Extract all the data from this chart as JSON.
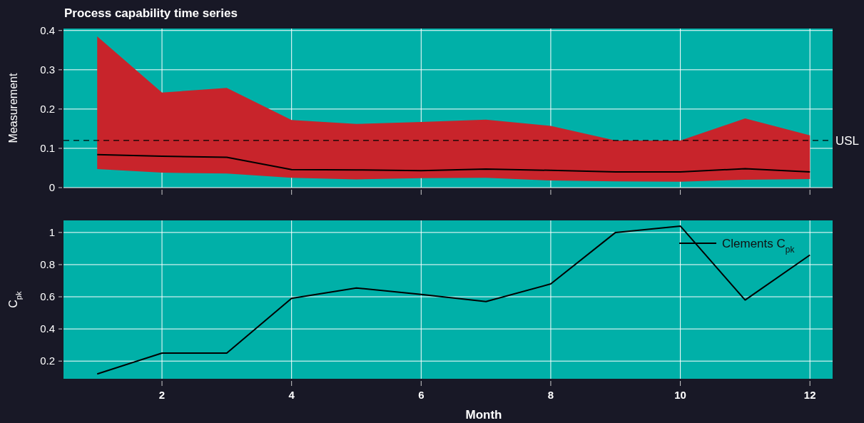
{
  "chart_data": [
    {
      "type": "line",
      "title": "Process capability time series",
      "ylabel": "Measurement",
      "x": [
        1,
        2,
        3,
        4,
        5,
        6,
        7,
        8,
        9,
        10,
        11,
        12
      ],
      "series": [
        {
          "color": "#000000",
          "colors": [
            "#c8242b",
            "#c8242b",
            "#c8242b",
            "#c8242b",
            "#c8242b",
            "#c8242b",
            "#c8242b",
            "#c8242b",
            "#c8242b",
            "#c8242b",
            "#c8242b",
            "#c8242b"
          ],
          "values": [
            0.084,
            0.08,
            0.077,
            0.046,
            0.045,
            0.043,
            0.047,
            0.044,
            0.04,
            0.04,
            0.048,
            0.04
          ],
          "lower": [
            0.047,
            0.038,
            0.036,
            0.025,
            0.021,
            0.024,
            0.025,
            0.018,
            0.016,
            0.015,
            0.02,
            0.022
          ],
          "upper": [
            0.385,
            0.242,
            0.254,
            0.172,
            0.162,
            0.167,
            0.173,
            0.157,
            0.12,
            0.12,
            0.176,
            0.133
          ]
        }
      ],
      "xlim": [
        0.48,
        12.35
      ],
      "xticks": [
        2,
        4,
        6,
        8,
        10,
        12
      ],
      "ylim": [
        0,
        0.405
      ],
      "yticks": [
        0,
        0.1,
        0.2,
        0.3,
        0.4
      ],
      "ref_lines": [
        {
          "axis": "y",
          "value": 0.12,
          "label": "USL",
          "color": "#000000",
          "line_style": "dashed"
        }
      ],
      "grid": true,
      "tick_labels": "y",
      "legend": false
    },
    {
      "type": "line",
      "xlabel": "Month",
      "ylabel": "C$_{pk}$",
      "x": [
        1,
        2,
        3,
        4,
        5,
        6,
        7,
        8,
        9,
        10,
        11,
        12
      ],
      "series": [
        {
          "name": "Clements C$_{pk}$",
          "color": "#000000",
          "values": [
            0.12,
            0.25,
            0.25,
            0.59,
            0.655,
            0.615,
            0.57,
            0.68,
            1.0,
            1.04,
            0.58,
            0.86
          ]
        }
      ],
      "xlim": [
        0.48,
        12.35
      ],
      "xticks": [
        2,
        4,
        6,
        8,
        10,
        12
      ],
      "ylim": [
        0.09,
        1.075
      ],
      "yticks": [
        0.2,
        0.4,
        0.6,
        0.8,
        1
      ],
      "grid": true,
      "legend": "top right"
    }
  ]
}
